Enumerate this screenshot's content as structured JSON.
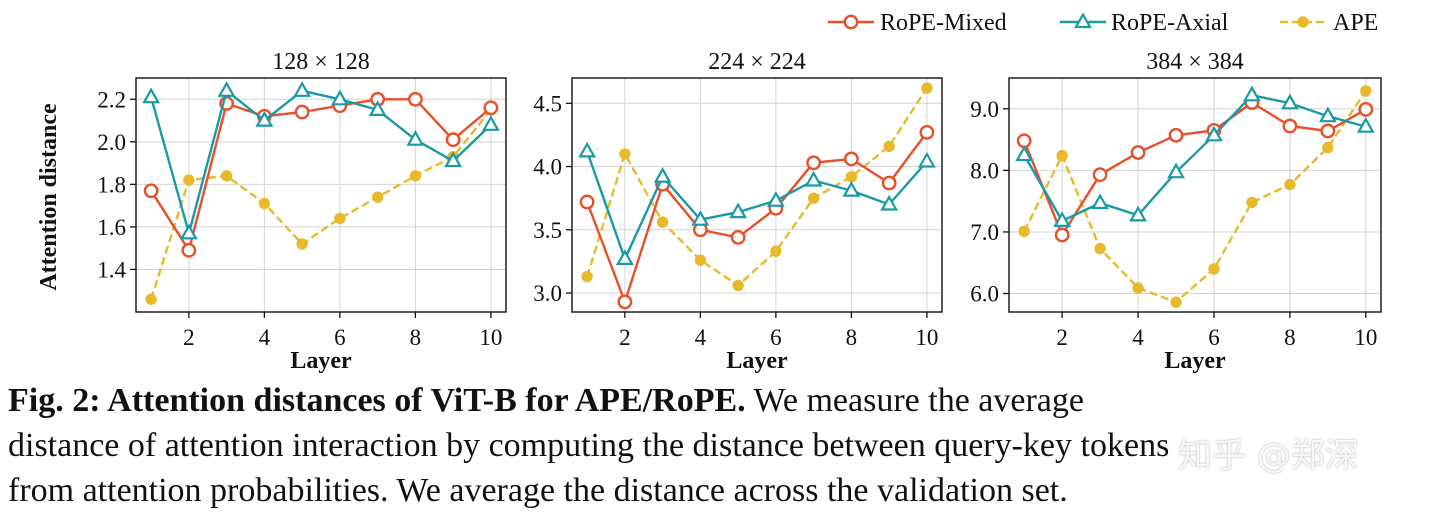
{
  "legend": {
    "items": [
      {
        "label": "RoPE-Mixed",
        "color": "#e8502a",
        "marker": "circle"
      },
      {
        "label": "RoPE-Axial",
        "color": "#1a9aa5",
        "marker": "triangle"
      },
      {
        "label": "APE",
        "color": "#e8b92a",
        "marker": "dot-dashed"
      }
    ]
  },
  "chart_data": [
    {
      "type": "line",
      "title": "128 × 128",
      "xlabel": "Layer",
      "ylabel": "Attention distance",
      "xlim": [
        0.6,
        10.4
      ],
      "ylim": [
        1.2,
        2.3
      ],
      "xticks": [
        2,
        4,
        6,
        8,
        10
      ],
      "yticks": [
        1.4,
        1.6,
        1.8,
        2.0,
        2.2
      ],
      "ytick_labels": [
        "1.4",
        "1.6",
        "1.8",
        "2.0",
        "2.2"
      ],
      "grid": true,
      "x": [
        1,
        2,
        3,
        4,
        5,
        6,
        7,
        8,
        9,
        10
      ],
      "series": [
        {
          "name": "RoPE-Mixed",
          "color": "#e8502a",
          "marker": "circle",
          "values": [
            1.77,
            1.49,
            2.18,
            2.12,
            2.14,
            2.17,
            2.2,
            2.2,
            2.01,
            2.16
          ]
        },
        {
          "name": "RoPE-Axial",
          "color": "#1a9aa5",
          "marker": "triangle",
          "values": [
            2.21,
            1.57,
            2.24,
            2.1,
            2.24,
            2.2,
            2.15,
            2.01,
            1.91,
            2.08
          ]
        },
        {
          "name": "APE",
          "color": "#e8b92a",
          "marker": "dot",
          "values": [
            1.26,
            1.82,
            1.84,
            1.71,
            1.52,
            1.64,
            1.74,
            1.84,
            1.93,
            2.15
          ]
        }
      ]
    },
    {
      "type": "line",
      "title": "224 × 224",
      "xlabel": "Layer",
      "ylabel": "",
      "xlim": [
        0.6,
        10.4
      ],
      "ylim": [
        2.85,
        4.7
      ],
      "xticks": [
        2,
        4,
        6,
        8,
        10
      ],
      "yticks": [
        3.0,
        3.5,
        4.0,
        4.5
      ],
      "ytick_labels": [
        "3.0",
        "3.5",
        "4.0",
        "4.5"
      ],
      "grid": true,
      "x": [
        1,
        2,
        3,
        4,
        5,
        6,
        7,
        8,
        9,
        10
      ],
      "series": [
        {
          "name": "RoPE-Mixed",
          "color": "#e8502a",
          "marker": "circle",
          "values": [
            3.72,
            2.93,
            3.86,
            3.5,
            3.44,
            3.67,
            4.03,
            4.06,
            3.87,
            4.27
          ]
        },
        {
          "name": "RoPE-Axial",
          "color": "#1a9aa5",
          "marker": "triangle",
          "values": [
            4.12,
            3.27,
            3.92,
            3.58,
            3.64,
            3.73,
            3.89,
            3.81,
            3.7,
            4.04
          ]
        },
        {
          "name": "APE",
          "color": "#e8b92a",
          "marker": "dot",
          "values": [
            3.13,
            4.1,
            3.56,
            3.26,
            3.06,
            3.33,
            3.75,
            3.92,
            4.16,
            4.62
          ]
        }
      ]
    },
    {
      "type": "line",
      "title": "384 × 384",
      "xlabel": "Layer",
      "ylabel": "",
      "xlim": [
        0.6,
        10.4
      ],
      "ylim": [
        5.7,
        9.5
      ],
      "xticks": [
        2,
        4,
        6,
        8,
        10
      ],
      "yticks": [
        6.0,
        7.0,
        8.0,
        9.0
      ],
      "ytick_labels": [
        "6.0",
        "7.0",
        "8.0",
        "9.0"
      ],
      "grid": true,
      "x": [
        1,
        2,
        3,
        4,
        5,
        6,
        7,
        8,
        9,
        10
      ],
      "series": [
        {
          "name": "RoPE-Mixed",
          "color": "#e8502a",
          "marker": "circle",
          "values": [
            8.48,
            6.95,
            7.93,
            8.29,
            8.57,
            8.65,
            9.1,
            8.72,
            8.64,
            8.99
          ]
        },
        {
          "name": "RoPE-Axial",
          "color": "#1a9aa5",
          "marker": "triangle",
          "values": [
            8.25,
            7.18,
            7.47,
            7.27,
            7.97,
            8.57,
            9.22,
            9.09,
            8.88,
            8.71
          ]
        },
        {
          "name": "APE",
          "color": "#e8b92a",
          "marker": "dot",
          "values": [
            7.01,
            8.24,
            6.73,
            6.09,
            5.86,
            6.4,
            7.48,
            7.77,
            8.37,
            9.29
          ]
        }
      ]
    }
  ],
  "caption": {
    "lead": "Fig. 2: Attention distances of ViT-B for APE/RoPE.",
    "line1_rest": " We measure the average",
    "line2": "distance of attention interaction by computing the distance between query-key tokens",
    "line3": "from attention probabilities. We average the distance across the validation set."
  },
  "watermark": "知乎 @郑深"
}
